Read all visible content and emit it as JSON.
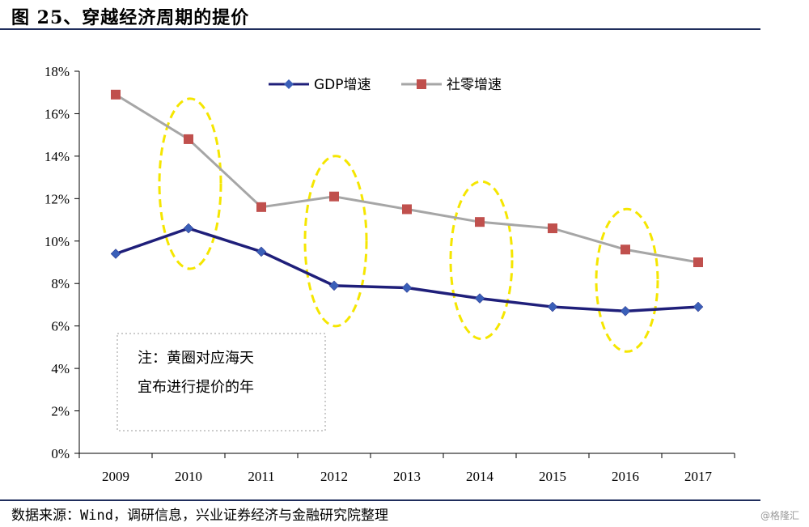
{
  "figure": {
    "title": "图 25、穿越经济周期的提价",
    "source": "数据来源：Wind，调研信息，兴业证券经济与金融研究院整理",
    "watermark": "@格隆汇"
  },
  "chart_data": {
    "type": "line",
    "title": "",
    "xlabel": "",
    "ylabel": "",
    "categories": [
      "2009",
      "2010",
      "2011",
      "2012",
      "2013",
      "2014",
      "2015",
      "2016",
      "2017"
    ],
    "y_ticks": [
      "0%",
      "2%",
      "4%",
      "6%",
      "8%",
      "10%",
      "12%",
      "14%",
      "16%",
      "18%"
    ],
    "ylim": [
      0,
      18
    ],
    "series": [
      {
        "name": "GDP增速",
        "color": "#1f1f7a",
        "marker": "diamond",
        "values": [
          9.4,
          10.6,
          9.5,
          7.9,
          7.8,
          7.3,
          6.9,
          6.7,
          6.9
        ]
      },
      {
        "name": "社零增速",
        "color": "#a6a6a6",
        "marker_color": "#c0504d",
        "marker": "square",
        "values": [
          16.9,
          14.8,
          11.6,
          12.1,
          11.5,
          10.9,
          10.6,
          9.6,
          9.0
        ]
      }
    ],
    "legend": "top-center",
    "grid": false,
    "highlight_years": [
      "2010",
      "2012",
      "2014",
      "2016"
    ],
    "highlight_color": "#f5e600",
    "note": [
      "注：黄圈对应海天",
      "宜布进行提价的年"
    ]
  }
}
